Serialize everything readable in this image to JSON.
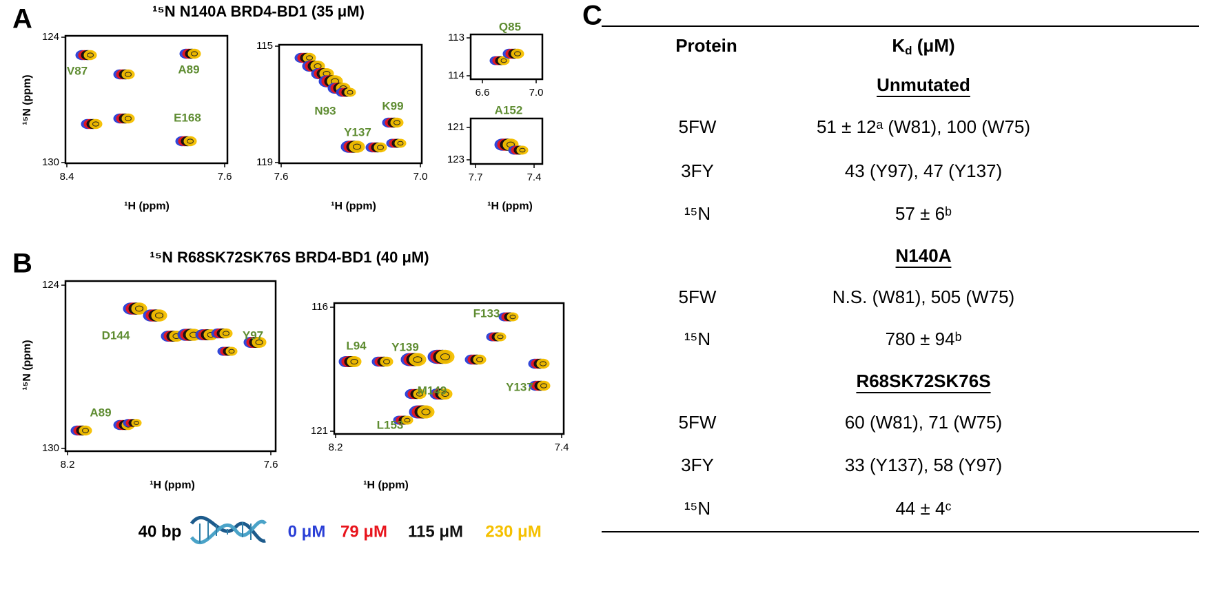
{
  "panels": [
    {
      "letter": "A",
      "title": "¹⁵N N140A BRD4-BD1 (35 μM)",
      "spectra": [
        {
          "y_label": "¹⁵N (ppm)",
          "x_label": "¹H (ppm)",
          "x_ticks": [
            "8.4",
            "7.6"
          ],
          "y_ticks": [
            "124",
            "130"
          ],
          "residues": [
            "V87",
            "A89",
            "E168"
          ]
        },
        {
          "x_label": "¹H (ppm)",
          "x_ticks": [
            "7.6",
            "7.0"
          ],
          "y_ticks": [
            "115",
            "119"
          ],
          "residues": [
            "N93",
            "K99",
            "Y137"
          ]
        },
        {
          "x_ticks": [
            "6.6",
            "7.0"
          ],
          "y_ticks": [
            "113",
            "114"
          ],
          "residues": [
            "Q85"
          ]
        },
        {
          "x_label": "¹H (ppm)",
          "x_ticks": [
            "7.7",
            "7.4"
          ],
          "y_ticks": [
            "121",
            "123"
          ],
          "residues": [
            "A152"
          ]
        }
      ]
    },
    {
      "letter": "B",
      "title": "¹⁵N R68SK72SK76S BRD4-BD1 (40 μM)",
      "spectra": [
        {
          "y_label": "¹⁵N (ppm)",
          "x_label": "¹H (ppm)",
          "x_ticks": [
            "8.2",
            "7.6"
          ],
          "y_ticks": [
            "124",
            "130"
          ],
          "residues": [
            "D144",
            "Y97",
            "A89"
          ]
        },
        {
          "x_label": "¹H (ppm)",
          "x_ticks": [
            "8.2",
            "7.4"
          ],
          "y_ticks": [
            "116",
            "121"
          ],
          "residues": [
            "F133",
            "L94",
            "Y139",
            "M149",
            "L153",
            "Y137"
          ]
        }
      ]
    }
  ],
  "legend": {
    "dna": "40 bp",
    "concentrations": [
      "0 μM",
      "79 μM",
      "115 μM",
      "230 μM"
    ]
  },
  "table": {
    "letter": "C",
    "header": {
      "protein": "Protein",
      "kd_main": "K",
      "kd_sub": "d",
      "kd_unit": " (μM)"
    },
    "sections": [
      {
        "name": "Unmutated",
        "rows": [
          [
            "5FW",
            "51 ± 12ᵃ (W81), 100 (W75)"
          ],
          [
            "3FY",
            "43 (Y97), 47 (Y137)"
          ],
          [
            "¹⁵N",
            "57 ± 6ᵇ"
          ]
        ]
      },
      {
        "name": "N140A",
        "rows": [
          [
            "5FW",
            "N.S. (W81), 505 (W75)"
          ],
          [
            "¹⁵N",
            "780 ± 94ᵇ"
          ]
        ]
      },
      {
        "name": "R68SK72SK76S",
        "rows": [
          [
            "5FW",
            "60 (W81), 71 (W75)"
          ],
          [
            "3FY",
            "33 (Y137), 58 (Y97)"
          ],
          [
            "¹⁵N",
            "44 ± 4ᶜ"
          ]
        ]
      }
    ]
  }
}
